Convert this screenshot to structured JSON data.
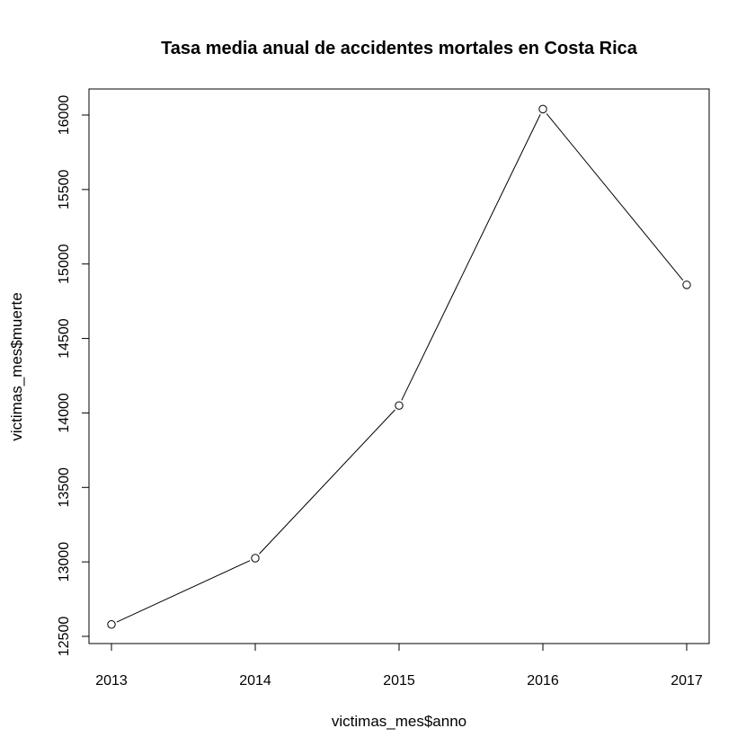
{
  "chart_data": {
    "type": "line",
    "title": "Tasa media anual de accidentes mortales en Costa Rica",
    "xlabel": "victimas_mes$anno",
    "ylabel": "victimas_mes$muerte",
    "x": [
      2013,
      2014,
      2015,
      2016,
      2017
    ],
    "series": [
      {
        "values": [
          12580,
          13025,
          14050,
          16040,
          14860
        ]
      }
    ],
    "xlim": [
      2013,
      2017
    ],
    "ylim": [
      12500,
      16000
    ],
    "xticks": [
      "2013",
      "2014",
      "2015",
      "2016",
      "2017"
    ],
    "yticks": [
      "12500",
      "13000",
      "13500",
      "14000",
      "14500",
      "15000",
      "15500",
      "16000"
    ],
    "grid": false,
    "marker": "open-circle",
    "line_color": "#000000"
  }
}
